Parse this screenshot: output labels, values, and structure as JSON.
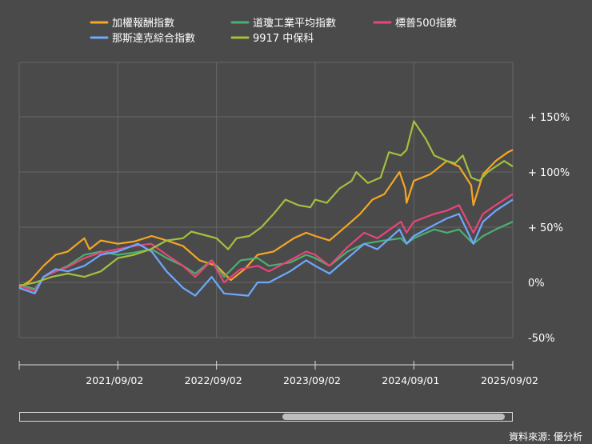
{
  "chart_data": {
    "type": "line",
    "title": "",
    "xlabel": "",
    "ylabel": "",
    "y_unit": "%",
    "ylim": [
      -60,
      175
    ],
    "y_ticks": [
      {
        "value": 150,
        "label": "+ 150%"
      },
      {
        "value": 100,
        "label": "+ 100%"
      },
      {
        "value": 50,
        "label": "+ 50%"
      },
      {
        "value": 0,
        "label": "0%"
      },
      {
        "value": -50,
        "label": "-50%"
      }
    ],
    "x_ticks": [
      "2021/09/02",
      "2022/09/02",
      "2023/09/02",
      "2024/09/01",
      "2025/09/02"
    ],
    "legend_position": "top",
    "grid": true,
    "x_range": [
      "2020/09/02",
      "2025/09/02"
    ],
    "series": [
      {
        "name": "加權報酬指數",
        "color": "#f5a623",
        "points": [
          [
            "2020/09/02",
            -5
          ],
          [
            "2020/10/15",
            2
          ],
          [
            "2020/12/01",
            15
          ],
          [
            "2021/01/15",
            25
          ],
          [
            "2021/03/01",
            28
          ],
          [
            "2021/05/01",
            40
          ],
          [
            "2021/05/20",
            30
          ],
          [
            "2021/07/01",
            38
          ],
          [
            "2021/09/02",
            35
          ],
          [
            "2021/11/01",
            37
          ],
          [
            "2022/01/05",
            42
          ],
          [
            "2022/03/01",
            38
          ],
          [
            "2022/05/01",
            33
          ],
          [
            "2022/07/01",
            20
          ],
          [
            "2022/09/02",
            15
          ],
          [
            "2022/10/25",
            2
          ],
          [
            "2022/12/15",
            12
          ],
          [
            "2023/02/01",
            25
          ],
          [
            "2023/04/01",
            28
          ],
          [
            "2023/06/15",
            40
          ],
          [
            "2023/07/31",
            45
          ],
          [
            "2023/09/02",
            42
          ],
          [
            "2023/10/25",
            38
          ],
          [
            "2023/12/31",
            52
          ],
          [
            "2024/02/15",
            62
          ],
          [
            "2024/04/01",
            75
          ],
          [
            "2024/05/15",
            80
          ],
          [
            "2024/07/10",
            100
          ],
          [
            "2024/07/31",
            85
          ],
          [
            "2024/08/05",
            72
          ],
          [
            "2024/09/01",
            92
          ],
          [
            "2024/11/01",
            98
          ],
          [
            "2025/01/01",
            110
          ],
          [
            "2025/02/15",
            105
          ],
          [
            "2025/04/01",
            88
          ],
          [
            "2025/04/09",
            70
          ],
          [
            "2025/05/15",
            98
          ],
          [
            "2025/07/01",
            110
          ],
          [
            "2025/08/15",
            118
          ],
          [
            "2025/09/02",
            120
          ]
        ]
      },
      {
        "name": "道瓊工業平均指數",
        "color": "#4caf72",
        "points": [
          [
            "2020/09/02",
            -2
          ],
          [
            "2020/10/30",
            -6
          ],
          [
            "2020/12/01",
            5
          ],
          [
            "2021/01/15",
            10
          ],
          [
            "2021/03/01",
            15
          ],
          [
            "2021/05/01",
            25
          ],
          [
            "2021/07/01",
            28
          ],
          [
            "2021/09/02",
            25
          ],
          [
            "2021/11/01",
            27
          ],
          [
            "2022/01/05",
            30
          ],
          [
            "2022/03/01",
            22
          ],
          [
            "2022/05/01",
            15
          ],
          [
            "2022/06/15",
            8
          ],
          [
            "2022/08/15",
            20
          ],
          [
            "2022/09/30",
            5
          ],
          [
            "2022/11/30",
            20
          ],
          [
            "2023/02/01",
            22
          ],
          [
            "2023/03/15",
            15
          ],
          [
            "2023/06/01",
            18
          ],
          [
            "2023/07/31",
            25
          ],
          [
            "2023/09/02",
            22
          ],
          [
            "2023/10/25",
            15
          ],
          [
            "2023/12/31",
            28
          ],
          [
            "2024/03/01",
            35
          ],
          [
            "2024/05/15",
            38
          ],
          [
            "2024/07/15",
            40
          ],
          [
            "2024/08/05",
            35
          ],
          [
            "2024/09/01",
            40
          ],
          [
            "2024/11/15",
            48
          ],
          [
            "2025/01/01",
            45
          ],
          [
            "2025/02/15",
            48
          ],
          [
            "2025/04/09",
            35
          ],
          [
            "2025/05/15",
            42
          ],
          [
            "2025/07/01",
            48
          ],
          [
            "2025/09/02",
            55
          ]
        ]
      },
      {
        "name": "標普500指數",
        "color": "#e8457a",
        "points": [
          [
            "2020/09/02",
            -3
          ],
          [
            "2020/10/30",
            -8
          ],
          [
            "2020/12/01",
            5
          ],
          [
            "2021/01/15",
            10
          ],
          [
            "2021/03/01",
            14
          ],
          [
            "2021/05/01",
            22
          ],
          [
            "2021/07/01",
            27
          ],
          [
            "2021/09/02",
            30
          ],
          [
            "2021/11/01",
            33
          ],
          [
            "2022/01/03",
            35
          ],
          [
            "2022/03/01",
            25
          ],
          [
            "2022/05/01",
            15
          ],
          [
            "2022/06/15",
            5
          ],
          [
            "2022/08/15",
            20
          ],
          [
            "2022/09/30",
            0
          ],
          [
            "2022/11/30",
            12
          ],
          [
            "2023/02/01",
            15
          ],
          [
            "2023/03/15",
            10
          ],
          [
            "2023/06/01",
            20
          ],
          [
            "2023/07/31",
            28
          ],
          [
            "2023/09/02",
            25
          ],
          [
            "2023/10/25",
            15
          ],
          [
            "2023/12/31",
            32
          ],
          [
            "2024/03/01",
            45
          ],
          [
            "2024/04/19",
            40
          ],
          [
            "2024/07/15",
            55
          ],
          [
            "2024/08/05",
            45
          ],
          [
            "2024/09/01",
            55
          ],
          [
            "2024/11/15",
            62
          ],
          [
            "2025/01/01",
            65
          ],
          [
            "2025/02/15",
            70
          ],
          [
            "2025/04/09",
            45
          ],
          [
            "2025/05/15",
            62
          ],
          [
            "2025/07/01",
            70
          ],
          [
            "2025/09/02",
            80
          ]
        ]
      },
      {
        "name": "那斯達克綜合指數",
        "color": "#6ea8ff",
        "points": [
          [
            "2020/09/02",
            -5
          ],
          [
            "2020/10/30",
            -10
          ],
          [
            "2020/12/01",
            5
          ],
          [
            "2021/01/15",
            12
          ],
          [
            "2021/03/01",
            10
          ],
          [
            "2021/05/01",
            15
          ],
          [
            "2021/07/01",
            25
          ],
          [
            "2021/09/02",
            28
          ],
          [
            "2021/11/15",
            35
          ],
          [
            "2022/01/05",
            28
          ],
          [
            "2022/03/01",
            10
          ],
          [
            "2022/05/01",
            -5
          ],
          [
            "2022/06/15",
            -12
          ],
          [
            "2022/08/15",
            5
          ],
          [
            "2022/09/30",
            -10
          ],
          [
            "2022/12/28",
            -12
          ],
          [
            "2023/02/01",
            0
          ],
          [
            "2023/03/15",
            0
          ],
          [
            "2023/06/01",
            10
          ],
          [
            "2023/07/31",
            20
          ],
          [
            "2023/09/02",
            15
          ],
          [
            "2023/10/25",
            8
          ],
          [
            "2023/12/31",
            22
          ],
          [
            "2024/03/01",
            35
          ],
          [
            "2024/04/19",
            30
          ],
          [
            "2024/07/10",
            48
          ],
          [
            "2024/08/05",
            35
          ],
          [
            "2024/09/01",
            42
          ],
          [
            "2024/11/15",
            52
          ],
          [
            "2025/01/01",
            58
          ],
          [
            "2025/02/15",
            62
          ],
          [
            "2025/04/09",
            35
          ],
          [
            "2025/05/15",
            55
          ],
          [
            "2025/07/01",
            65
          ],
          [
            "2025/09/02",
            75
          ]
        ]
      },
      {
        "name": "9917 中保科",
        "color": "#a3c03d",
        "points": [
          [
            "2020/09/02",
            -3
          ],
          [
            "2020/11/01",
            0
          ],
          [
            "2021/01/01",
            5
          ],
          [
            "2021/03/01",
            8
          ],
          [
            "2021/05/01",
            5
          ],
          [
            "2021/07/01",
            10
          ],
          [
            "2021/09/02",
            22
          ],
          [
            "2021/11/01",
            25
          ],
          [
            "2022/01/01",
            30
          ],
          [
            "2022/03/01",
            38
          ],
          [
            "2022/05/01",
            40
          ],
          [
            "2022/06/01",
            46
          ],
          [
            "2022/08/01",
            42
          ],
          [
            "2022/09/02",
            40
          ],
          [
            "2022/10/15",
            30
          ],
          [
            "2022/11/15",
            40
          ],
          [
            "2023/01/01",
            42
          ],
          [
            "2023/02/15",
            50
          ],
          [
            "2023/04/01",
            62
          ],
          [
            "2023/05/15",
            75
          ],
          [
            "2023/07/01",
            70
          ],
          [
            "2023/08/15",
            68
          ],
          [
            "2023/09/02",
            75
          ],
          [
            "2023/10/15",
            72
          ],
          [
            "2023/12/01",
            85
          ],
          [
            "2024/01/15",
            92
          ],
          [
            "2024/02/01",
            100
          ],
          [
            "2024/03/15",
            90
          ],
          [
            "2024/05/01",
            95
          ],
          [
            "2024/06/01",
            118
          ],
          [
            "2024/07/15",
            115
          ],
          [
            "2024/08/05",
            120
          ],
          [
            "2024/09/01",
            146
          ],
          [
            "2024/10/15",
            130
          ],
          [
            "2024/11/15",
            115
          ],
          [
            "2025/01/01",
            110
          ],
          [
            "2025/02/01",
            108
          ],
          [
            "2025/03/01",
            115
          ],
          [
            "2025/04/01",
            95
          ],
          [
            "2025/05/01",
            92
          ],
          [
            "2025/06/01",
            100
          ],
          [
            "2025/07/01",
            105
          ],
          [
            "2025/08/01",
            110
          ],
          [
            "2025/09/02",
            105
          ]
        ]
      }
    ]
  },
  "source_text": "資料來源: 優分析"
}
